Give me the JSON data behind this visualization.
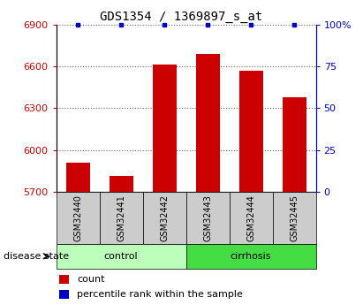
{
  "title": "GDS1354 / 1369897_s_at",
  "samples": [
    "GSM32440",
    "GSM32441",
    "GSM32442",
    "GSM32443",
    "GSM32444",
    "GSM32445"
  ],
  "count_values": [
    5910,
    5815,
    6610,
    6690,
    6570,
    6380
  ],
  "percentile_values": [
    100,
    100,
    100,
    100,
    100,
    100
  ],
  "ylim_left": [
    5700,
    6900
  ],
  "yticks_left": [
    5700,
    6000,
    6300,
    6600,
    6900
  ],
  "ylim_right": [
    0,
    100
  ],
  "yticks_right": [
    0,
    25,
    50,
    75,
    100
  ],
  "ytick_labels_right": [
    "0",
    "25",
    "50",
    "75",
    "100%"
  ],
  "bar_color": "#cc0000",
  "dot_color": "#0000cc",
  "left_tick_color": "#cc0000",
  "right_tick_color": "#0000cc",
  "control_label": "control",
  "cirrhosis_label": "cirrhosis",
  "disease_state_label": "disease state",
  "legend_count_label": "count",
  "legend_percentile_label": "percentile rank within the sample",
  "bar_width": 0.55,
  "sample_box_color": "#cccccc",
  "control_bg_color": "#bbffbb",
  "cirrhosis_bg_color": "#44dd44",
  "title_fontsize": 10,
  "tick_fontsize": 8,
  "label_fontsize": 8
}
